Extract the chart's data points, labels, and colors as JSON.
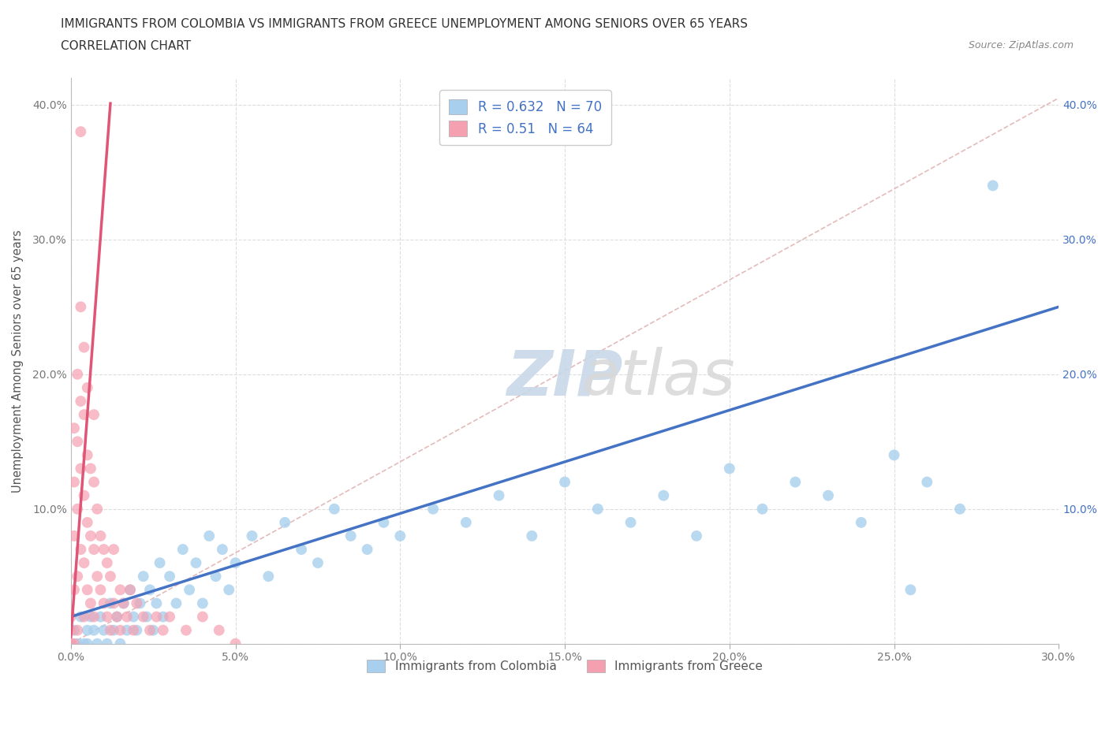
{
  "title_line1": "IMMIGRANTS FROM COLOMBIA VS IMMIGRANTS FROM GREECE UNEMPLOYMENT AMONG SENIORS OVER 65 YEARS",
  "title_line2": "CORRELATION CHART",
  "source_text": "Source: ZipAtlas.com",
  "ylabel": "Unemployment Among Seniors over 65 years",
  "xlim": [
    0.0,
    0.3
  ],
  "ylim": [
    0.0,
    0.42
  ],
  "xticks": [
    0.0,
    0.05,
    0.1,
    0.15,
    0.2,
    0.25,
    0.3
  ],
  "yticks": [
    0.0,
    0.1,
    0.2,
    0.3,
    0.4
  ],
  "xtick_labels": [
    "0.0%",
    "5.0%",
    "10.0%",
    "15.0%",
    "20.0%",
    "25.0%",
    "30.0%"
  ],
  "ytick_labels": [
    "",
    "10.0%",
    "20.0%",
    "30.0%",
    "40.0%"
  ],
  "colombia_color": "#a8d0ee",
  "greece_color": "#f4a0b0",
  "colombia_R": 0.632,
  "colombia_N": 70,
  "greece_R": 0.51,
  "greece_N": 64,
  "legend_label_colombia": "Immigrants from Colombia",
  "legend_label_greece": "Immigrants from Greece",
  "colombia_scatter": [
    [
      0.0,
      0.0
    ],
    [
      0.001,
      0.01
    ],
    [
      0.002,
      0.0
    ],
    [
      0.003,
      0.02
    ],
    [
      0.004,
      0.0
    ],
    [
      0.005,
      0.01
    ],
    [
      0.005,
      0.0
    ],
    [
      0.006,
      0.02
    ],
    [
      0.007,
      0.01
    ],
    [
      0.008,
      0.0
    ],
    [
      0.009,
      0.02
    ],
    [
      0.01,
      0.01
    ],
    [
      0.011,
      0.0
    ],
    [
      0.012,
      0.03
    ],
    [
      0.013,
      0.01
    ],
    [
      0.014,
      0.02
    ],
    [
      0.015,
      0.0
    ],
    [
      0.016,
      0.03
    ],
    [
      0.017,
      0.01
    ],
    [
      0.018,
      0.04
    ],
    [
      0.019,
      0.02
    ],
    [
      0.02,
      0.01
    ],
    [
      0.021,
      0.03
    ],
    [
      0.022,
      0.05
    ],
    [
      0.023,
      0.02
    ],
    [
      0.024,
      0.04
    ],
    [
      0.025,
      0.01
    ],
    [
      0.026,
      0.03
    ],
    [
      0.027,
      0.06
    ],
    [
      0.028,
      0.02
    ],
    [
      0.03,
      0.05
    ],
    [
      0.032,
      0.03
    ],
    [
      0.034,
      0.07
    ],
    [
      0.036,
      0.04
    ],
    [
      0.038,
      0.06
    ],
    [
      0.04,
      0.03
    ],
    [
      0.042,
      0.08
    ],
    [
      0.044,
      0.05
    ],
    [
      0.046,
      0.07
    ],
    [
      0.048,
      0.04
    ],
    [
      0.05,
      0.06
    ],
    [
      0.055,
      0.08
    ],
    [
      0.06,
      0.05
    ],
    [
      0.065,
      0.09
    ],
    [
      0.07,
      0.07
    ],
    [
      0.075,
      0.06
    ],
    [
      0.08,
      0.1
    ],
    [
      0.085,
      0.08
    ],
    [
      0.09,
      0.07
    ],
    [
      0.095,
      0.09
    ],
    [
      0.1,
      0.08
    ],
    [
      0.11,
      0.1
    ],
    [
      0.12,
      0.09
    ],
    [
      0.13,
      0.11
    ],
    [
      0.14,
      0.08
    ],
    [
      0.15,
      0.12
    ],
    [
      0.16,
      0.1
    ],
    [
      0.17,
      0.09
    ],
    [
      0.18,
      0.11
    ],
    [
      0.19,
      0.08
    ],
    [
      0.2,
      0.13
    ],
    [
      0.21,
      0.1
    ],
    [
      0.22,
      0.12
    ],
    [
      0.23,
      0.11
    ],
    [
      0.24,
      0.09
    ],
    [
      0.25,
      0.14
    ],
    [
      0.255,
      0.04
    ],
    [
      0.26,
      0.12
    ],
    [
      0.27,
      0.1
    ],
    [
      0.28,
      0.34
    ]
  ],
  "greece_scatter": [
    [
      0.0,
      0.0
    ],
    [
      0.0,
      0.01
    ],
    [
      0.0,
      0.02
    ],
    [
      0.0,
      0.0
    ],
    [
      0.001,
      0.04
    ],
    [
      0.001,
      0.08
    ],
    [
      0.001,
      0.12
    ],
    [
      0.001,
      0.16
    ],
    [
      0.001,
      0.0
    ],
    [
      0.002,
      0.05
    ],
    [
      0.002,
      0.1
    ],
    [
      0.002,
      0.15
    ],
    [
      0.002,
      0.2
    ],
    [
      0.002,
      0.01
    ],
    [
      0.003,
      0.07
    ],
    [
      0.003,
      0.13
    ],
    [
      0.003,
      0.18
    ],
    [
      0.003,
      0.25
    ],
    [
      0.003,
      0.38
    ],
    [
      0.004,
      0.02
    ],
    [
      0.004,
      0.06
    ],
    [
      0.004,
      0.11
    ],
    [
      0.004,
      0.17
    ],
    [
      0.004,
      0.22
    ],
    [
      0.005,
      0.04
    ],
    [
      0.005,
      0.09
    ],
    [
      0.005,
      0.14
    ],
    [
      0.005,
      0.19
    ],
    [
      0.006,
      0.03
    ],
    [
      0.006,
      0.08
    ],
    [
      0.006,
      0.13
    ],
    [
      0.007,
      0.02
    ],
    [
      0.007,
      0.07
    ],
    [
      0.007,
      0.12
    ],
    [
      0.007,
      0.17
    ],
    [
      0.008,
      0.05
    ],
    [
      0.008,
      0.1
    ],
    [
      0.009,
      0.04
    ],
    [
      0.009,
      0.08
    ],
    [
      0.01,
      0.03
    ],
    [
      0.01,
      0.07
    ],
    [
      0.011,
      0.02
    ],
    [
      0.011,
      0.06
    ],
    [
      0.012,
      0.01
    ],
    [
      0.012,
      0.05
    ],
    [
      0.013,
      0.03
    ],
    [
      0.013,
      0.07
    ],
    [
      0.014,
      0.02
    ],
    [
      0.015,
      0.04
    ],
    [
      0.015,
      0.01
    ],
    [
      0.016,
      0.03
    ],
    [
      0.017,
      0.02
    ],
    [
      0.018,
      0.04
    ],
    [
      0.019,
      0.01
    ],
    [
      0.02,
      0.03
    ],
    [
      0.022,
      0.02
    ],
    [
      0.024,
      0.01
    ],
    [
      0.026,
      0.02
    ],
    [
      0.028,
      0.01
    ],
    [
      0.03,
      0.02
    ],
    [
      0.035,
      0.01
    ],
    [
      0.04,
      0.02
    ],
    [
      0.045,
      0.01
    ],
    [
      0.05,
      0.0
    ]
  ],
  "bg_color": "#ffffff",
  "grid_color": "#dddddd",
  "title_fontsize": 11,
  "axis_label_fontsize": 10.5,
  "tick_fontsize": 10,
  "legend_fontsize": 11,
  "colombia_line_color": "#4472c4",
  "greece_line_color": "#e05575",
  "ref_line_color": "#ddaaaa",
  "watermark_color": "#d0d0d0",
  "colombia_trendline": [
    0.02,
    0.25
  ],
  "greece_trendline_slope": 35.0,
  "greece_trendline_intercept": 0.0
}
